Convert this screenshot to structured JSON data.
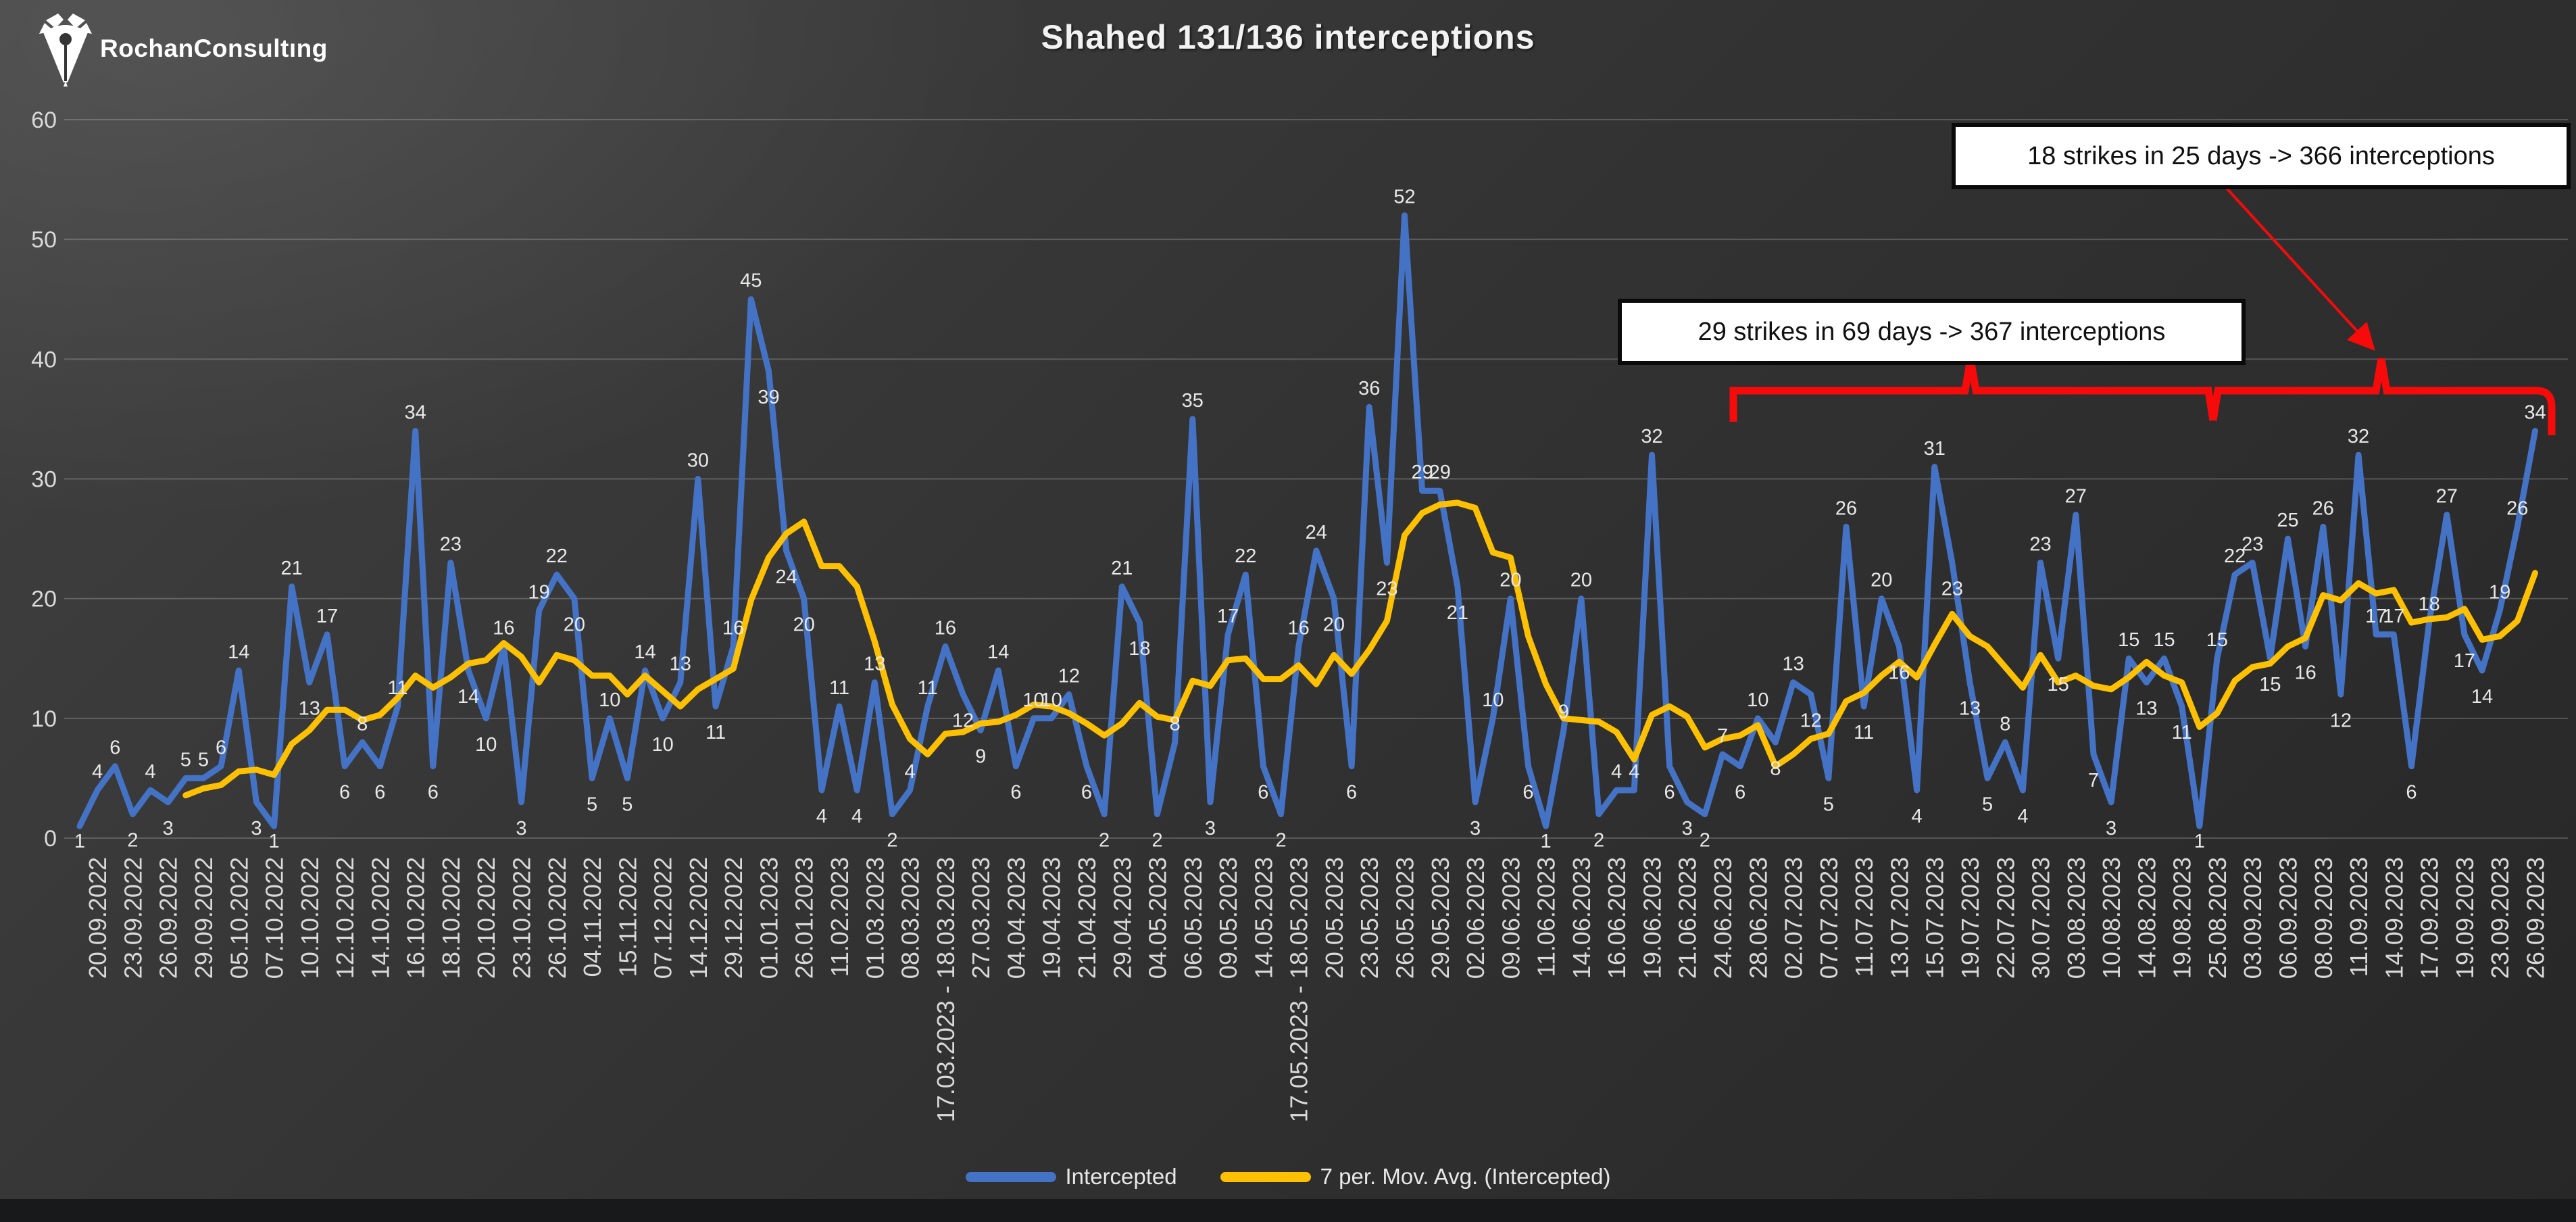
{
  "logo": {
    "text": "RochanConsultıng"
  },
  "title": "Shahed 131/136 interceptions",
  "annotations": {
    "box_18_strikes": "18 strikes in 25 days -> 366 interceptions",
    "box_29_strikes": "29 strikes in 69 days -> 367 interceptions"
  },
  "legend": [
    {
      "label": "Intercepted",
      "color": "#4472C4"
    },
    {
      "label": "7 per. Mov. Avg. (Intercepted)",
      "color": "#FFC000"
    }
  ],
  "colors": {
    "intercepted_line": "#4472C4",
    "moving_avg_line": "#FFC000",
    "annotation_red": "#F70A0A",
    "data_label": "#e8e8e8",
    "axis_label": "#d9d9d9",
    "gridline": "rgba(255,255,255,0.20)"
  },
  "chart_data": {
    "type": "line",
    "title": "Shahed 131/136 interceptions",
    "ylim": [
      0,
      60
    ],
    "yticks": [
      0,
      10,
      20,
      30,
      40,
      50,
      60
    ],
    "grid": "horizontal",
    "legend_position": "bottom",
    "x_label_every_n_points": 2,
    "x_tick_labels": [
      "20.09.2022",
      "23.09.2022",
      "26.09.2022",
      "29.09.2022",
      "05.10.2022",
      "07.10.2022",
      "10.10.2022",
      "12.10.2022",
      "14.10.2022",
      "16.10.2022",
      "18.10.2022",
      "20.10.2022",
      "23.10.2022",
      "26.10.2022",
      "04.11.2022",
      "15.11.2022",
      "07.12.2022",
      "14.12.2022",
      "29.12.2022",
      "01.01.2023",
      "26.01.2023",
      "11.02.2023",
      "01.03.2023",
      "08.03.2023",
      "17.03.2023 - 18.03.2023",
      "27.03.2023",
      "04.04.2023",
      "19.04.2023",
      "21.04.2023",
      "29.04.2023",
      "04.05.2023",
      "06.05.2023",
      "09.05.2023",
      "14.05.2023",
      "17.05.2023 - 18.05.2023",
      "20.05.2023",
      "23.05.2023",
      "26.05.2023",
      "29.05.2023",
      "02.06.2023",
      "09.06.2023",
      "11.06.2023",
      "14.06.2023",
      "16.06.2023",
      "19.06.2023",
      "21.06.2023",
      "24.06.2023",
      "28.06.2023",
      "02.07.2023",
      "07.07.2023",
      "11.07.2023",
      "13.07.2023",
      "15.07.2023",
      "19.07.2023",
      "22.07.2023",
      "30.07.2023",
      "03.08.2023",
      "10.08.2023",
      "14.08.2023",
      "19.08.2023",
      "25.08.2023",
      "03.09.2023",
      "06.09.2023",
      "08.09.2023",
      "11.09.2023",
      "14.09.2023",
      "17.09.2023",
      "19.09.2023",
      "23.09.2023",
      "26.09.2023"
    ],
    "series": [
      {
        "name": "Intercepted",
        "color": "#4472C4",
        "values": [
          1,
          4,
          6,
          2,
          4,
          3,
          5,
          5,
          6,
          14,
          3,
          1,
          21,
          13,
          17,
          6,
          8,
          6,
          11,
          34,
          6,
          23,
          14,
          10,
          16,
          3,
          19,
          22,
          20,
          5,
          10,
          5,
          14,
          10,
          13,
          30,
          11,
          16,
          45,
          39,
          24,
          20,
          4,
          11,
          4,
          13,
          2,
          4,
          11,
          16,
          12,
          9,
          14,
          6,
          10,
          10,
          12,
          6,
          2,
          21,
          18,
          2,
          8,
          35,
          3,
          17,
          22,
          6,
          2,
          16,
          24,
          20,
          6,
          36,
          23,
          52,
          29,
          29,
          21,
          3,
          10,
          20,
          6,
          1,
          9,
          20,
          2,
          4,
          4,
          32,
          6,
          3,
          2,
          7,
          6,
          10,
          8,
          13,
          12,
          5,
          26,
          11,
          20,
          16,
          4,
          31,
          23,
          13,
          5,
          8,
          4,
          23,
          15,
          27,
          7,
          3,
          15,
          13,
          15,
          11,
          1,
          15,
          22,
          23,
          15,
          25,
          16,
          26,
          12,
          32,
          17,
          17,
          6,
          18,
          27,
          17,
          14,
          19,
          26,
          34
        ]
      },
      {
        "name": "7 per. Mov. Avg. (Intercepted)",
        "color": "#FFC000",
        "derived": "trailing 7-point moving average of Intercepted, plotted from the 7th point onward"
      }
    ]
  }
}
